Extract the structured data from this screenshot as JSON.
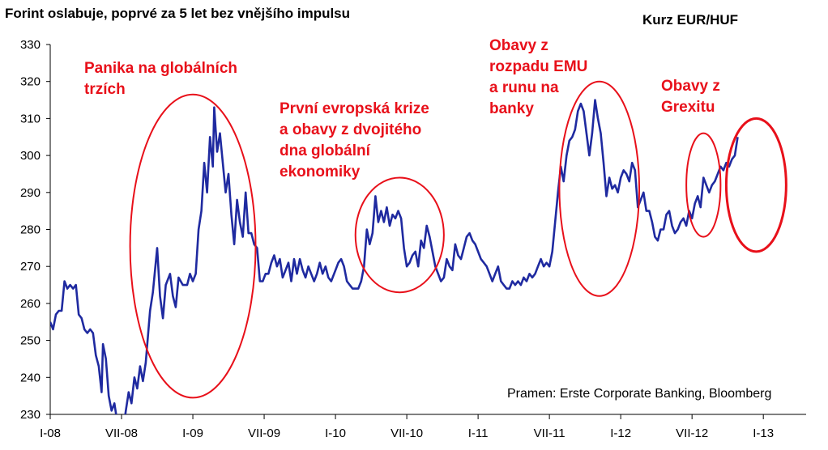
{
  "chart_data": {
    "type": "line",
    "title": "Forint oslabuje, poprvé za 5 let bez vnějšího impulsu",
    "subtitle": "Kurz EUR/HUF",
    "source": "Pramen: Erste Corporate Banking, Bloomberg",
    "ylim": [
      230,
      330
    ],
    "yticks": [
      230,
      240,
      250,
      260,
      270,
      280,
      290,
      300,
      310,
      320,
      330
    ],
    "xlim": [
      2008.0,
      2013.3
    ],
    "xticks": [
      {
        "label": "I-08",
        "x": 2008.0
      },
      {
        "label": "VII-08",
        "x": 2008.5
      },
      {
        "label": "I-09",
        "x": 2009.0
      },
      {
        "label": "VII-09",
        "x": 2009.5
      },
      {
        "label": "I-10",
        "x": 2010.0
      },
      {
        "label": "VII-10",
        "x": 2010.5
      },
      {
        "label": "I-11",
        "x": 2011.0
      },
      {
        "label": "VII-11",
        "x": 2011.5
      },
      {
        "label": "I-12",
        "x": 2012.0
      },
      {
        "label": "VII-12",
        "x": 2012.5
      },
      {
        "label": "I-13",
        "x": 2013.0
      }
    ],
    "series": [
      {
        "color": "#1f2aa0",
        "points": [
          [
            2008.0,
            255
          ],
          [
            2008.02,
            253
          ],
          [
            2008.04,
            257
          ],
          [
            2008.06,
            258
          ],
          [
            2008.08,
            258
          ],
          [
            2008.1,
            266
          ],
          [
            2008.12,
            264
          ],
          [
            2008.14,
            265
          ],
          [
            2008.16,
            264
          ],
          [
            2008.18,
            265
          ],
          [
            2008.2,
            257
          ],
          [
            2008.22,
            256
          ],
          [
            2008.24,
            253
          ],
          [
            2008.26,
            252
          ],
          [
            2008.28,
            253
          ],
          [
            2008.3,
            252
          ],
          [
            2008.32,
            246
          ],
          [
            2008.34,
            243
          ],
          [
            2008.36,
            236
          ],
          [
            2008.37,
            249
          ],
          [
            2008.39,
            245
          ],
          [
            2008.41,
            235
          ],
          [
            2008.43,
            231
          ],
          [
            2008.45,
            233
          ],
          [
            2008.47,
            228
          ],
          [
            2008.49,
            225
          ],
          [
            2008.51,
            225
          ],
          [
            2008.53,
            231
          ],
          [
            2008.55,
            236
          ],
          [
            2008.57,
            233
          ],
          [
            2008.59,
            240
          ],
          [
            2008.61,
            237
          ],
          [
            2008.63,
            243
          ],
          [
            2008.65,
            239
          ],
          [
            2008.67,
            244
          ],
          [
            2008.7,
            258
          ],
          [
            2008.72,
            263
          ],
          [
            2008.75,
            275
          ],
          [
            2008.77,
            262
          ],
          [
            2008.79,
            256
          ],
          [
            2008.81,
            265
          ],
          [
            2008.84,
            268
          ],
          [
            2008.86,
            262
          ],
          [
            2008.88,
            259
          ],
          [
            2008.9,
            267
          ],
          [
            2008.93,
            265
          ],
          [
            2008.96,
            265
          ],
          [
            2008.98,
            268
          ],
          [
            2009.0,
            266
          ],
          [
            2009.02,
            268
          ],
          [
            2009.04,
            280
          ],
          [
            2009.06,
            285
          ],
          [
            2009.08,
            298
          ],
          [
            2009.1,
            290
          ],
          [
            2009.12,
            305
          ],
          [
            2009.14,
            297
          ],
          [
            2009.15,
            313
          ],
          [
            2009.17,
            301
          ],
          [
            2009.19,
            306
          ],
          [
            2009.21,
            298
          ],
          [
            2009.23,
            290
          ],
          [
            2009.25,
            295
          ],
          [
            2009.27,
            284
          ],
          [
            2009.29,
            276
          ],
          [
            2009.31,
            288
          ],
          [
            2009.33,
            282
          ],
          [
            2009.35,
            278
          ],
          [
            2009.37,
            290
          ],
          [
            2009.39,
            279
          ],
          [
            2009.41,
            279
          ],
          [
            2009.43,
            276
          ],
          [
            2009.45,
            275
          ],
          [
            2009.47,
            266
          ],
          [
            2009.49,
            266
          ],
          [
            2009.51,
            268
          ],
          [
            2009.53,
            268
          ],
          [
            2009.55,
            271
          ],
          [
            2009.57,
            273
          ],
          [
            2009.59,
            270
          ],
          [
            2009.61,
            272
          ],
          [
            2009.63,
            267
          ],
          [
            2009.65,
            269
          ],
          [
            2009.67,
            271
          ],
          [
            2009.69,
            266
          ],
          [
            2009.71,
            272
          ],
          [
            2009.73,
            268
          ],
          [
            2009.75,
            272
          ],
          [
            2009.77,
            269
          ],
          [
            2009.79,
            267
          ],
          [
            2009.81,
            270
          ],
          [
            2009.83,
            268
          ],
          [
            2009.85,
            266
          ],
          [
            2009.87,
            268
          ],
          [
            2009.89,
            271
          ],
          [
            2009.91,
            268
          ],
          [
            2009.93,
            270
          ],
          [
            2009.95,
            267
          ],
          [
            2009.97,
            266
          ],
          [
            2010.0,
            269
          ],
          [
            2010.02,
            271
          ],
          [
            2010.04,
            272
          ],
          [
            2010.06,
            270
          ],
          [
            2010.08,
            266
          ],
          [
            2010.1,
            265
          ],
          [
            2010.12,
            264
          ],
          [
            2010.14,
            264
          ],
          [
            2010.16,
            264
          ],
          [
            2010.18,
            266
          ],
          [
            2010.2,
            270
          ],
          [
            2010.22,
            280
          ],
          [
            2010.24,
            276
          ],
          [
            2010.26,
            279
          ],
          [
            2010.28,
            289
          ],
          [
            2010.3,
            282
          ],
          [
            2010.32,
            285
          ],
          [
            2010.34,
            282
          ],
          [
            2010.36,
            286
          ],
          [
            2010.38,
            281
          ],
          [
            2010.4,
            284
          ],
          [
            2010.42,
            283
          ],
          [
            2010.44,
            285
          ],
          [
            2010.46,
            283
          ],
          [
            2010.48,
            275
          ],
          [
            2010.5,
            270
          ],
          [
            2010.52,
            271
          ],
          [
            2010.54,
            273
          ],
          [
            2010.56,
            274
          ],
          [
            2010.58,
            270
          ],
          [
            2010.6,
            277
          ],
          [
            2010.62,
            275
          ],
          [
            2010.64,
            281
          ],
          [
            2010.66,
            278
          ],
          [
            2010.68,
            274
          ],
          [
            2010.7,
            270
          ],
          [
            2010.72,
            268
          ],
          [
            2010.74,
            266
          ],
          [
            2010.76,
            267
          ],
          [
            2010.78,
            272
          ],
          [
            2010.8,
            270
          ],
          [
            2010.82,
            269
          ],
          [
            2010.84,
            276
          ],
          [
            2010.86,
            273
          ],
          [
            2010.88,
            272
          ],
          [
            2010.9,
            275
          ],
          [
            2010.92,
            278
          ],
          [
            2010.94,
            279
          ],
          [
            2010.96,
            277
          ],
          [
            2010.98,
            276
          ],
          [
            2011.0,
            274
          ],
          [
            2011.02,
            272
          ],
          [
            2011.04,
            271
          ],
          [
            2011.06,
            270
          ],
          [
            2011.08,
            268
          ],
          [
            2011.1,
            266
          ],
          [
            2011.12,
            268
          ],
          [
            2011.14,
            270
          ],
          [
            2011.16,
            266
          ],
          [
            2011.18,
            265
          ],
          [
            2011.2,
            264
          ],
          [
            2011.22,
            264
          ],
          [
            2011.24,
            266
          ],
          [
            2011.26,
            265
          ],
          [
            2011.28,
            266
          ],
          [
            2011.3,
            265
          ],
          [
            2011.32,
            267
          ],
          [
            2011.34,
            266
          ],
          [
            2011.36,
            268
          ],
          [
            2011.38,
            267
          ],
          [
            2011.4,
            268
          ],
          [
            2011.42,
            270
          ],
          [
            2011.44,
            272
          ],
          [
            2011.46,
            270
          ],
          [
            2011.48,
            271
          ],
          [
            2011.5,
            270
          ],
          [
            2011.52,
            274
          ],
          [
            2011.54,
            282
          ],
          [
            2011.56,
            290
          ],
          [
            2011.58,
            297
          ],
          [
            2011.6,
            293
          ],
          [
            2011.62,
            300
          ],
          [
            2011.64,
            304
          ],
          [
            2011.66,
            305
          ],
          [
            2011.68,
            307
          ],
          [
            2011.7,
            312
          ],
          [
            2011.72,
            314
          ],
          [
            2011.74,
            312
          ],
          [
            2011.76,
            306
          ],
          [
            2011.78,
            300
          ],
          [
            2011.8,
            306
          ],
          [
            2011.82,
            315
          ],
          [
            2011.84,
            310
          ],
          [
            2011.86,
            306
          ],
          [
            2011.88,
            298
          ],
          [
            2011.9,
            289
          ],
          [
            2011.92,
            294
          ],
          [
            2011.94,
            291
          ],
          [
            2011.96,
            292
          ],
          [
            2011.98,
            290
          ],
          [
            2012.0,
            294
          ],
          [
            2012.02,
            296
          ],
          [
            2012.04,
            295
          ],
          [
            2012.06,
            293
          ],
          [
            2012.08,
            298
          ],
          [
            2012.1,
            296
          ],
          [
            2012.12,
            286
          ],
          [
            2012.14,
            288
          ],
          [
            2012.16,
            290
          ],
          [
            2012.18,
            285
          ],
          [
            2012.2,
            285
          ],
          [
            2012.22,
            282
          ],
          [
            2012.24,
            278
          ],
          [
            2012.26,
            277
          ],
          [
            2012.28,
            280
          ],
          [
            2012.3,
            280
          ],
          [
            2012.32,
            284
          ],
          [
            2012.34,
            285
          ],
          [
            2012.36,
            281
          ],
          [
            2012.38,
            279
          ],
          [
            2012.4,
            280
          ],
          [
            2012.42,
            282
          ],
          [
            2012.44,
            283
          ],
          [
            2012.46,
            281
          ],
          [
            2012.48,
            285
          ],
          [
            2012.5,
            283
          ],
          [
            2012.52,
            287
          ],
          [
            2012.54,
            289
          ],
          [
            2012.56,
            286
          ],
          [
            2012.58,
            294
          ],
          [
            2012.6,
            292
          ],
          [
            2012.62,
            290
          ],
          [
            2012.64,
            292
          ],
          [
            2012.66,
            293
          ],
          [
            2012.68,
            295
          ],
          [
            2012.7,
            297
          ],
          [
            2012.72,
            296
          ],
          [
            2012.74,
            298
          ],
          [
            2012.76,
            297
          ],
          [
            2012.78,
            299
          ],
          [
            2012.8,
            300
          ],
          [
            2012.82,
            305
          ]
        ]
      }
    ],
    "annotations": [
      {
        "lines": [
          "Panika na globálních",
          "trzích"
        ],
        "cx": 2009.0,
        "cy": 275.5,
        "rx": 0.44,
        "ry": 41.0
      },
      {
        "lines": [
          "První evropská krize",
          "a obavy z dvojitého",
          "dna globální",
          "ekonomiky"
        ],
        "cx": 2010.45,
        "cy": 278.5,
        "rx": 0.31,
        "ry": 15.5
      },
      {
        "lines": [
          "Obavy z",
          "rozpadu EMU",
          "a runu na",
          "banky"
        ],
        "cx": 2011.85,
        "cy": 291.0,
        "rx": 0.28,
        "ry": 29.0
      },
      {
        "lines": [
          "Obavy z",
          "Grexitu"
        ],
        "cx": 2012.58,
        "cy": 292.0,
        "rx": 0.12,
        "ry": 14.0
      },
      {
        "lines": [],
        "cx": 2012.95,
        "cy": 292.0,
        "rx": 0.21,
        "ry": 18.0
      }
    ]
  }
}
